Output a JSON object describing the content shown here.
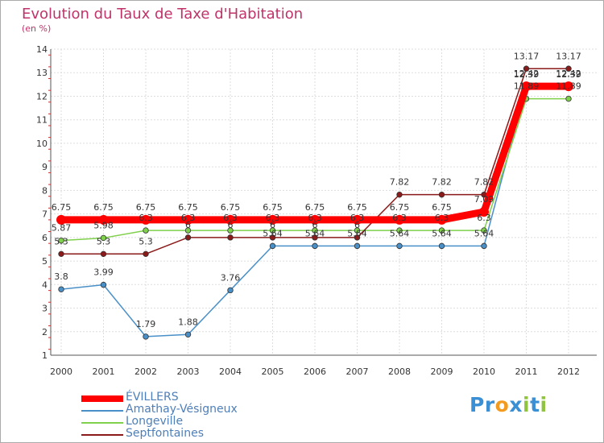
{
  "chart_data": {
    "type": "line",
    "title": "Evolution du Taux de Taxe d'Habitation",
    "subtitle": "(en %)",
    "xlabel": "",
    "ylabel": "",
    "x": [
      "2000",
      "2001",
      "2002",
      "2003",
      "2004",
      "2005",
      "2006",
      "2007",
      "2008",
      "2009",
      "2010",
      "2011",
      "2012"
    ],
    "ylim": [
      1,
      14
    ],
    "yticks": [
      "1",
      "2",
      "3",
      "4",
      "5",
      "6",
      "7",
      "8",
      "9",
      "10",
      "11",
      "12",
      "13",
      "14"
    ],
    "grid": true,
    "legend_position": "bottom-left",
    "series": [
      {
        "name": "ÉVILLERS",
        "color": "#ff0000",
        "values": [
          6.75,
          6.75,
          6.75,
          6.75,
          6.75,
          6.75,
          6.75,
          6.75,
          6.75,
          6.75,
          7.09,
          12.42,
          12.42
        ],
        "labels": [
          "6.75",
          "6.75",
          "6.75",
          "6.75",
          "6.75",
          "6.75",
          "6.75",
          "6.75",
          "6.75",
          "6.75",
          "7.09",
          "12.42",
          "12.42"
        ]
      },
      {
        "name": "Amathay-Vésigneux",
        "color": "#4a90c8",
        "values": [
          3.8,
          3.99,
          1.79,
          1.88,
          3.76,
          5.64,
          5.64,
          5.64,
          5.64,
          5.64,
          5.64,
          12.39,
          12.39
        ],
        "labels": [
          "3.8",
          "3.99",
          "1.79",
          "1.88",
          "3.76",
          "5.64",
          "5.64",
          "5.64",
          "5.64",
          "5.64",
          "5.64",
          "12.39",
          "12.39"
        ]
      },
      {
        "name": "Longeville",
        "color": "#7fd04b",
        "values": [
          5.87,
          5.98,
          6.3,
          6.3,
          6.3,
          6.3,
          6.3,
          6.3,
          6.3,
          6.3,
          6.3,
          11.89,
          11.89
        ],
        "labels": [
          "5.87",
          "5.98",
          "6.3",
          "6.3",
          "6.3",
          "6.3",
          "6.3",
          "6.3",
          "6.3",
          "6.3",
          "6.3",
          "11.89",
          "11.89"
        ]
      },
      {
        "name": "Septfontaines",
        "color": "#8b1a1a",
        "values": [
          5.3,
          5.3,
          5.3,
          6.0,
          6.0,
          6.0,
          6.0,
          6.0,
          7.82,
          7.82,
          7.82,
          13.17,
          13.17
        ],
        "labels": [
          "5.3",
          "5.3",
          "5.3",
          "6",
          "6",
          "6",
          "6",
          "6",
          "7.82",
          "7.82",
          "7.82",
          "13.17",
          "13.17"
        ]
      }
    ]
  },
  "logo": {
    "text": "Proxiti",
    "letters": [
      "P",
      "r",
      "o",
      "x",
      "i",
      "t",
      "i"
    ],
    "colors": [
      "#3b8fd4",
      "#3b8fd4",
      "#f29b1f",
      "#3b8fd4",
      "#8fc43f",
      "#3b8fd4",
      "#8fc43f"
    ]
  }
}
